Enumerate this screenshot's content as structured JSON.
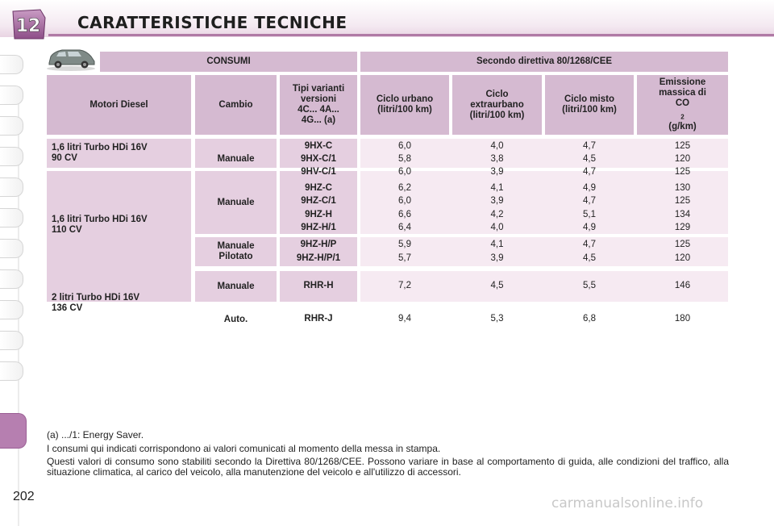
{
  "header": {
    "chapter_number": "12",
    "title": "CARATTERISTICHE TECNICHE"
  },
  "table": {
    "group_headers": {
      "consumi": "CONSUMI",
      "directive": "Secondo direttiva 80/1268/CEE"
    },
    "columns": {
      "engine": "Motori Diesel",
      "gearbox": "Cambio",
      "variants": [
        "Tipi varianti",
        "versioni",
        "4C... 4A...",
        "4G... (a)"
      ],
      "urban": [
        "Ciclo urbano",
        "(litri/100 km)"
      ],
      "extra_urban": [
        "Ciclo",
        "extraurbano",
        "(litri/100 km)"
      ],
      "mixed": [
        "Ciclo misto",
        "(litri/100 km)"
      ],
      "emission": [
        "Emissione",
        "massica di",
        "CO",
        "2",
        " (g/km)"
      ]
    },
    "engines": [
      [
        "1,6 litri Turbo HDi 16V",
        "90 CV"
      ],
      [
        "1,6 litri Turbo HDi 16V",
        "110 CV"
      ],
      [
        "2 litri Turbo HDi 16V",
        "136 CV"
      ]
    ],
    "gearboxes": [
      "Manuale",
      "Manuale",
      [
        "Manuale",
        "Pilotato"
      ],
      "Manuale",
      "Auto."
    ],
    "rows": [
      {
        "variant": "9HX-C",
        "urban": "6,0",
        "extra": "4,0",
        "mixed": "4,7",
        "co2": "125"
      },
      {
        "variant": "9HX-C/1",
        "urban": "5,8",
        "extra": "3,8",
        "mixed": "4,5",
        "co2": "120"
      },
      {
        "variant": "9HV-C/1",
        "urban": "6,0",
        "extra": "3,9",
        "mixed": "4,7",
        "co2": "125"
      },
      {
        "variant": "9HZ-C",
        "urban": "6,2",
        "extra": "4,1",
        "mixed": "4,9",
        "co2": "130"
      },
      {
        "variant": "9HZ-C/1",
        "urban": "6,0",
        "extra": "3,9",
        "mixed": "4,7",
        "co2": "125"
      },
      {
        "variant": "9HZ-H",
        "urban": "6,6",
        "extra": "4,2",
        "mixed": "5,1",
        "co2": "134"
      },
      {
        "variant": "9HZ-H/1",
        "urban": "6,4",
        "extra": "4,0",
        "mixed": "4,9",
        "co2": "129"
      },
      {
        "variant": "9HZ-H/P",
        "urban": "5,9",
        "extra": "4,1",
        "mixed": "4,7",
        "co2": "125"
      },
      {
        "variant": "9HZ-H/P/1",
        "urban": "5,7",
        "extra": "3,9",
        "mixed": "4,5",
        "co2": "120"
      },
      {
        "variant": "RHR-H",
        "urban": "7,2",
        "extra": "4,5",
        "mixed": "5,5",
        "co2": "146"
      },
      {
        "variant": "RHR-J",
        "urban": "9,4",
        "extra": "5,3",
        "mixed": "6,8",
        "co2": "180"
      }
    ]
  },
  "notes": {
    "footnote": "(a) .../1: Energy Saver.",
    "line1": "I consumi qui indicati corrispondono ai valori comunicati al momento della messa in stampa.",
    "line2": "Questi valori di consumo sono stabiliti secondo la Direttiva 80/1268/CEE. Possono variare in base al comportamento di guida, alle condizioni del traffico, alla situazione climatica, al carico del veicolo, alla manutenzione del veicolo e all'utilizzo di accessori."
  },
  "page_number": "202",
  "watermark": "carmanualsonline.info",
  "colors": {
    "accent": "#b67fb0",
    "header_cell": "#d5bad1",
    "row_cell": "#f6eaf2"
  },
  "icons": [
    "chapter-badge-icon",
    "car-icon"
  ]
}
